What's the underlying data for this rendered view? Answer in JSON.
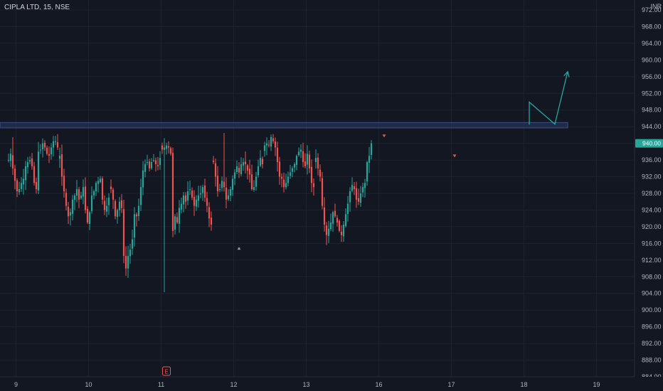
{
  "header": {
    "symbol_line": "CIPLA LTD, 15, NSE"
  },
  "currency": "INR",
  "colors": {
    "background": "#131722",
    "grid": "#1e222d",
    "up": "#26a69a",
    "down": "#ef5350",
    "zone": "#2a3a66",
    "zone_border": "#3b4f8c",
    "arrow": "#26a69a",
    "price_label_bg": "#26a69a",
    "earnings_marker": "#ef5350"
  },
  "chart_data": {
    "type": "candlestick",
    "title": "CIPLA LTD, 15, NSE",
    "ylim": [
      884,
      972
    ],
    "y_ticks": [
      972,
      968,
      964,
      960,
      956,
      952,
      948,
      944,
      940,
      936,
      932,
      928,
      924,
      920,
      916,
      912,
      908,
      904,
      900,
      896,
      892,
      888,
      884
    ],
    "y_tick_labels": [
      "972.00",
      "968.00",
      "964.00",
      "960.00",
      "956.00",
      "952.00",
      "948.00",
      "944.00",
      "940.00",
      "936.00",
      "932.00",
      "928.00",
      "924.00",
      "920.00",
      "916.00",
      "912.00",
      "908.00",
      "904.00",
      "900.00",
      "896.00",
      "892.00",
      "888.00",
      "884.00"
    ],
    "x_ticks": [
      {
        "label": "9",
        "bar": 3.5
      },
      {
        "label": "10",
        "bar": 37.5
      },
      {
        "label": "11",
        "bar": 71.5
      },
      {
        "label": "12",
        "bar": 105.5
      },
      {
        "label": "13",
        "bar": 139.5
      },
      {
        "label": "16",
        "bar": 173.5
      },
      {
        "label": "17",
        "bar": 207.5
      },
      {
        "label": "18",
        "bar": 241.5
      },
      {
        "label": "19",
        "bar": 275.5
      }
    ],
    "last_price_label": "940.00",
    "last_price": 940.0,
    "resistance_zone": {
      "low": 943.7,
      "high": 945.0,
      "end_bar": 262
    },
    "projection_path": [
      {
        "bar": 244,
        "price": 944.5
      },
      {
        "bar": 244,
        "price": 949.9
      },
      {
        "bar": 256,
        "price": 944.6
      },
      {
        "bar": 262,
        "price": 957.2
      }
    ],
    "earnings_marker": {
      "label": "E",
      "bar": 74
    },
    "signal_marks": [
      {
        "bar": 176,
        "price": 941.6,
        "dir": "down"
      },
      {
        "bar": 209,
        "price": 936.8,
        "dir": "down"
      },
      {
        "bar": 108,
        "price": 915.0,
        "dir": "up"
      }
    ],
    "day_paths": [
      [
        936.0,
        937.5,
        934.0,
        931.0,
        928.5,
        929.0,
        930.5,
        931.5,
        934.5,
        935.5,
        936.0,
        934.5,
        930.5,
        929.0,
        938.0,
        938.5,
        940.0,
        939.0,
        937.5,
        937.0,
        939.0,
        940.5,
        940.5,
        939.0
      ],
      [
        937.0,
        932.0,
        928.5,
        925.0,
        922.5,
        923.5,
        926.5,
        927.5,
        929.0,
        926.5,
        927.5,
        929.5,
        924.0,
        921.0,
        923.5,
        927.5,
        928.5,
        930.5,
        931.0,
        931.5,
        926.5,
        924.0,
        925.0,
        927.0
      ],
      [
        929.0,
        926.5,
        922.5,
        924.0,
        926.0,
        924.5,
        913.0,
        910.0,
        913.0,
        914.5,
        917.0,
        923.0,
        922.5,
        925.0,
        929.5,
        933.5,
        935.0,
        935.5,
        934.0,
        935.5,
        936.0,
        935.0,
        934.5,
        936.5
      ],
      [
        938.5,
        939.0,
        939.5,
        939.0,
        937.5,
        919.0,
        922.5,
        921.0,
        924.5,
        925.5,
        927.5,
        926.0,
        928.5,
        929.0,
        927.0,
        925.0,
        926.5,
        927.5,
        928.0,
        929.5,
        927.0,
        925.0,
        922.0,
        920.5
      ],
      [
        935.5,
        932.0,
        928.5,
        929.0,
        931.0,
        929.5,
        926.5,
        927.5,
        929.0,
        931.5,
        933.0,
        934.5,
        933.0,
        935.0,
        935.5,
        935.0,
        933.5,
        932.5,
        929.0,
        929.5,
        932.0,
        934.5,
        936.5,
        935.0
      ],
      [
        939.5,
        940.0,
        939.5,
        941.5,
        940.5,
        939.0,
        935.5,
        932.0,
        931.5,
        929.5,
        930.5,
        932.0,
        933.0,
        934.0,
        935.0,
        937.0,
        938.0,
        938.5,
        935.5,
        934.5,
        937.5,
        934.0,
        930.5,
        929.5
      ],
      [
        936.5,
        934.0,
        932.0,
        925.0,
        920.5,
        918.0,
        919.5,
        921.0,
        923.5,
        922.5,
        921.0,
        919.0,
        918.0,
        920.5,
        923.0,
        925.5,
        928.5,
        930.0,
        929.0,
        926.5,
        926.0,
        928.0,
        929.5,
        930.5,
        935.5,
        937.0,
        940.0
      ]
    ]
  }
}
